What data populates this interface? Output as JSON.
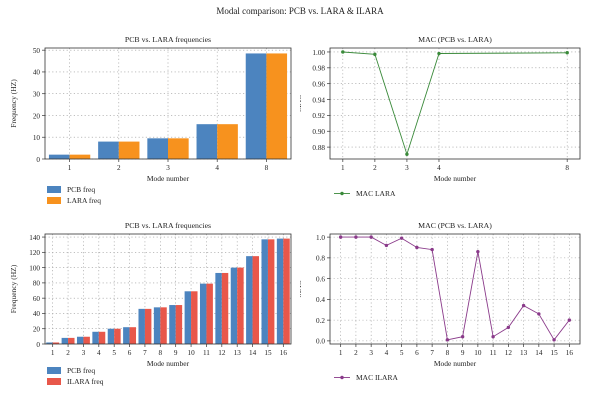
{
  "figure_title": "Modal comparison: PCB vs. LARA & ILARA",
  "colors": {
    "pcb": "#4c84bf",
    "lara": "#f7921e",
    "ilara": "#e8574a",
    "mac_lara": "#3a8a3a",
    "mac_ilara": "#8a3a8a"
  },
  "chart_data": [
    {
      "type": "bar",
      "title": "PCB vs. LARA frequencies",
      "xlabel": "Mode number",
      "ylabel": "Frequency (HZ)",
      "ylim": [
        0,
        51
      ],
      "yticks": [
        0,
        10,
        20,
        30,
        40,
        50
      ],
      "grid": true,
      "legend_position": "below",
      "categories": [
        "1",
        "2",
        "3",
        "4",
        "8"
      ],
      "series": [
        {
          "name": "PCB freq",
          "color": "#4c84bf",
          "values": [
            2.0,
            8.0,
            9.5,
            16.0,
            48.5
          ]
        },
        {
          "name": "LARA freq",
          "color": "#f7921e",
          "values": [
            2.0,
            8.0,
            9.5,
            16.0,
            48.5
          ]
        }
      ]
    },
    {
      "type": "line",
      "title": "MAC (PCB vs. LARA)",
      "xlabel": "Mode number",
      "ylabel": "MAC",
      "ylim": [
        0.865,
        1.005
      ],
      "xlim": [
        0.6,
        8.4
      ],
      "yticks": [
        0.88,
        0.9,
        0.92,
        0.94,
        0.96,
        0.98,
        1.0
      ],
      "xticks": [
        1,
        2,
        3,
        4,
        8
      ],
      "grid": true,
      "legend_position": "below",
      "series": [
        {
          "name": "MAC LARA",
          "color": "#3a8a3a",
          "x": [
            1,
            2,
            3,
            4,
            8
          ],
          "y": [
            1.0,
            0.997,
            0.871,
            0.998,
            0.999
          ]
        }
      ]
    },
    {
      "type": "bar",
      "title": "PCB vs. LARA frequencies",
      "xlabel": "Mode number",
      "ylabel": "Frequency (HZ)",
      "ylim": [
        0,
        144
      ],
      "yticks": [
        0,
        20,
        40,
        60,
        80,
        100,
        120,
        140
      ],
      "grid": true,
      "legend_position": "below",
      "categories": [
        "1",
        "2",
        "3",
        "4",
        "5",
        "6",
        "7",
        "8",
        "9",
        "10",
        "11",
        "12",
        "13",
        "14",
        "15",
        "16"
      ],
      "series": [
        {
          "name": "PCB freq",
          "color": "#4c84bf",
          "values": [
            2,
            8,
            9.5,
            16,
            20,
            22,
            46,
            48,
            51,
            69,
            79,
            93,
            100,
            115,
            137,
            138
          ]
        },
        {
          "name": "ILARA freq",
          "color": "#e8574a",
          "values": [
            2,
            8,
            9.5,
            16,
            20,
            22,
            46,
            48,
            51,
            69,
            79,
            93,
            100,
            115,
            137,
            138
          ]
        }
      ]
    },
    {
      "type": "line",
      "title": "MAC (PCB vs. LARA)",
      "xlabel": "Mode number",
      "ylabel": "MAC",
      "ylim": [
        -0.03,
        1.03
      ],
      "xlim": [
        0.3,
        16.7
      ],
      "yticks": [
        0.0,
        0.2,
        0.4,
        0.6,
        0.8,
        1.0
      ],
      "xticks": [
        1,
        2,
        3,
        4,
        5,
        6,
        7,
        8,
        9,
        10,
        11,
        12,
        13,
        14,
        15,
        16
      ],
      "grid": true,
      "legend_position": "below",
      "series": [
        {
          "name": "MAC ILARA",
          "color": "#8a3a8a",
          "x": [
            1,
            2,
            3,
            4,
            5,
            6,
            7,
            8,
            9,
            10,
            11,
            12,
            13,
            14,
            15,
            16
          ],
          "y": [
            1.0,
            1.0,
            1.0,
            0.92,
            0.99,
            0.9,
            0.88,
            0.01,
            0.04,
            0.86,
            0.04,
            0.13,
            0.34,
            0.26,
            0.01,
            0.2
          ]
        }
      ]
    }
  ]
}
